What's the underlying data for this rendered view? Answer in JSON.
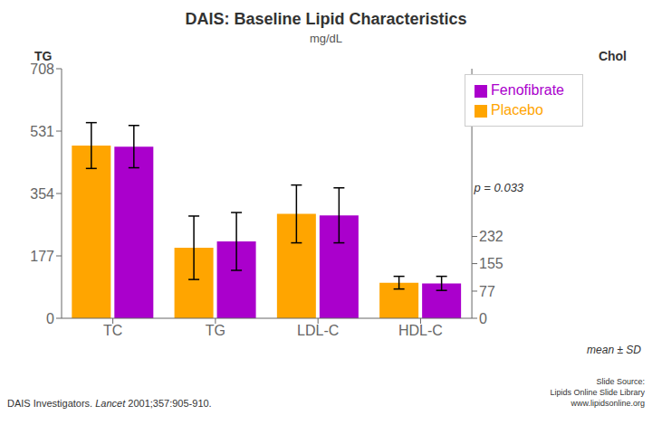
{
  "chart_data": {
    "type": "bar",
    "title": "DAIS: Baseline Lipid Characteristics",
    "subtitle": "mg/dL",
    "categories": [
      "TC",
      "TG",
      "LDL-C",
      "HDL-C"
    ],
    "series": [
      {
        "name": "Placebo",
        "color": "#FFA500",
        "values": [
          490,
          200,
          296,
          101
        ],
        "errors": [
          65,
          90,
          82,
          18
        ]
      },
      {
        "name": "Fenofibrate",
        "color": "#AA00CC",
        "values": [
          487,
          218,
          292,
          99
        ],
        "errors": [
          60,
          82,
          78,
          20
        ]
      }
    ],
    "ylabel": "TG",
    "y2label": "Chol",
    "ylim": [
      0,
      708
    ],
    "yticks": [
      0,
      177,
      354,
      531,
      708
    ],
    "y2lim": [
      0,
      708
    ],
    "y2ticks": [
      0,
      77,
      155,
      232
    ],
    "annotations": [
      "p = 0.033",
      "mean ± SD"
    ],
    "footer_left": [
      "DAIS Investigators. ",
      "Lancet",
      " 2001;357:905-910."
    ],
    "footer_right": [
      "Slide Source:",
      "Lipids Online Slide Library",
      "www.lipidsonline.org"
    ],
    "grid": false,
    "legend": "upper right"
  }
}
